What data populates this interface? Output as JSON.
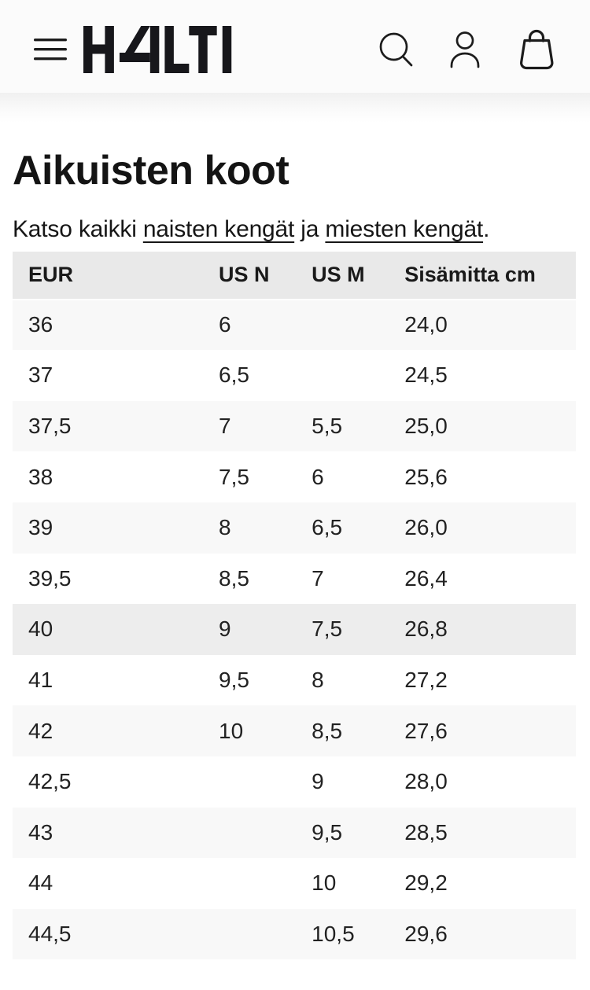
{
  "header": {
    "brand": "HALTI",
    "icons": {
      "menu": "menu-icon",
      "search": "search-icon",
      "account": "account-icon",
      "cart": "bag-icon"
    }
  },
  "content": {
    "title": "Aikuisten koot",
    "intro": {
      "text_before": "Katso kaikki ",
      "link_women": "naisten kengät",
      "text_between": " ja ",
      "link_men": "miesten kengät",
      "text_after": "."
    }
  },
  "table": {
    "columns": [
      "EUR",
      "US N",
      "US M",
      "Sisämitta cm"
    ],
    "rows": [
      [
        "36",
        "6",
        "",
        "24,0"
      ],
      [
        "37",
        "6,5",
        "",
        "24,5"
      ],
      [
        "37,5",
        "7",
        "5,5",
        "25,0"
      ],
      [
        "38",
        "7,5",
        "6",
        "25,6"
      ],
      [
        "39",
        "8",
        "6,5",
        "26,0"
      ],
      [
        "39,5",
        "8,5",
        "7",
        "26,4"
      ],
      [
        "40",
        "9",
        "7,5",
        "26,8"
      ],
      [
        "41",
        "9,5",
        "8",
        "27,2"
      ],
      [
        "42",
        "10",
        "8,5",
        "27,6"
      ],
      [
        "42,5",
        "",
        "9",
        "28,0"
      ],
      [
        "43",
        "",
        "9,5",
        "28,5"
      ],
      [
        "44",
        "",
        "10",
        "29,2"
      ],
      [
        "44,5",
        "",
        "10,5",
        "29,6"
      ]
    ],
    "highlighted_row": "40"
  },
  "colors": {
    "text": "#151515",
    "header_bg": "#fbfbfb",
    "table_header_bg": "#e9e9e9",
    "row_alt_bg": "#f8f8f8",
    "row_highlight_bg": "#ededed",
    "icon_stroke": "#1c1c1c"
  }
}
